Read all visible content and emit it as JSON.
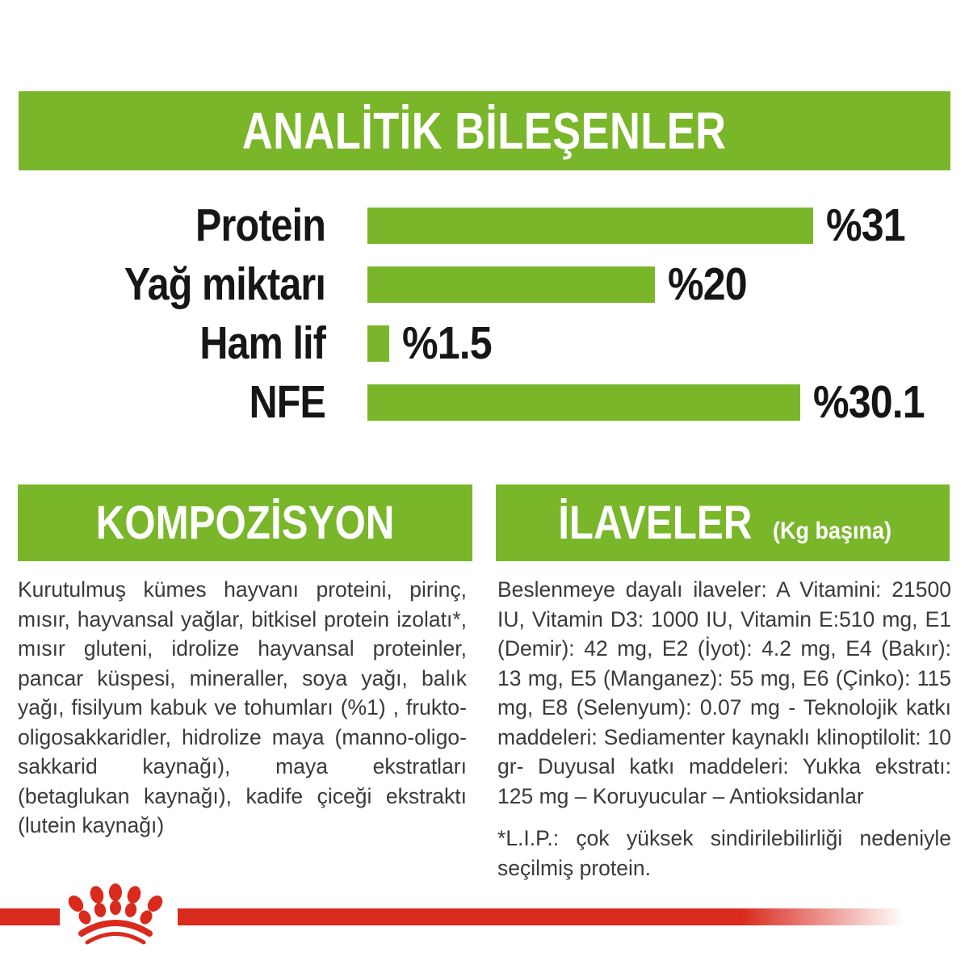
{
  "colors": {
    "green": "#79b62a",
    "red": "#d92a1d",
    "heading_text": "#ffffff",
    "label_ink": "#161616",
    "body_ink": "#3a3a3a"
  },
  "analytics_header": {
    "title": "ANALİTİK BİLEŞENLER"
  },
  "chart_data": {
    "type": "bar",
    "orientation": "horizontal",
    "title": "ANALİTİK BİLEŞENLER",
    "categories": [
      "Protein",
      "Yağ miktarı",
      "Ham lif",
      "NFE"
    ],
    "values": [
      31,
      20,
      1.5,
      30.1
    ],
    "value_labels": [
      "%31",
      "%20",
      "%1.5",
      "%30.1"
    ],
    "value_prefix": "%",
    "xlim": [
      0,
      31
    ],
    "bar_color": "#79b62a",
    "grid": false,
    "legend": false
  },
  "composition": {
    "title": "KOMPOZİSYON",
    "body": "Kurutulmuş kümes hayvanı proteini, pirinç, mısır, hayvansal yağlar, bitkisel protein izolatı*, mısır gluteni, idrolize hayvansal proteinler, pancar küspesi, mineraller, soya yağı, balık yağı, fisilyum kabuk ve tohumları (%1) , frukto-oligosakkaridler, hidrolize maya (manno-oligo-sakkarid kaynağı), maya ekstratları (betaglukan kaynağı), kadife çiceği ekstraktı (lutein kaynağı)"
  },
  "additives": {
    "title": "İLAVELER",
    "title_suffix": "(Kg başına)",
    "body": "Beslenmeye dayalı ilaveler: A Vitamini: 21500 IU, Vitamin D3: 1000 IU, Vitamin E:510 mg, E1 (Demir): 42 mg, E2 (İyot): 4.2 mg, E4 (Bakır): 13 mg, E5 (Manganez): 55 mg, E6 (Çinko): 115 mg, E8 (Selenyum): 0.07 mg - Teknolojik katkı maddeleri: Sediamenter kaynaklı klinoptilolit: 10 gr- Duyusal katkı maddeleri: Yukka ekstratı: 125 mg – Koruyucular – Antioksidanlar",
    "footnote": "*L.I.P.: çok yüksek sindirilebilirliği nedeniyle seçilmiş protein."
  },
  "footer": {
    "logo": "royal-canin-crown"
  }
}
